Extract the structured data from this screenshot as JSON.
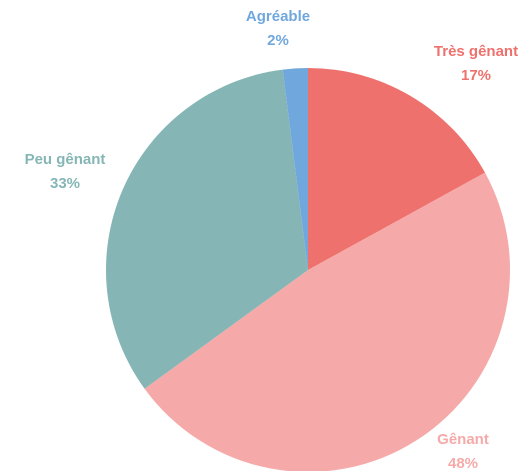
{
  "chart_data": {
    "type": "pie",
    "categories": [
      "Très gênant",
      "Gênant",
      "Peu gênant",
      "Agréable"
    ],
    "values": [
      17,
      48,
      33,
      2
    ],
    "value_labels": [
      "17%",
      "48%",
      "33%",
      "2%"
    ],
    "colors": [
      "#ef716d",
      "#f5aaa9",
      "#85b6b5",
      "#70a7dd"
    ]
  }
}
